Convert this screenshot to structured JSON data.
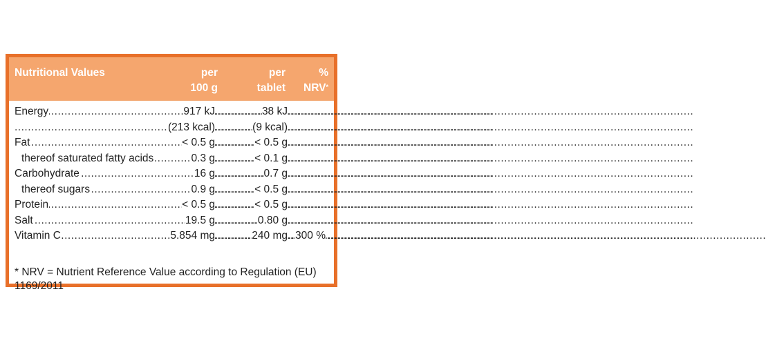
{
  "header": {
    "name": "Nutritional Values",
    "col1_line1": "per",
    "col1_line2": "100 g",
    "col2_line1": "per",
    "col2_line2": "tablet",
    "col3_line1": "%",
    "col3_line2": "NRV",
    "col3_mark": "*"
  },
  "rows": [
    {
      "label": "Energy",
      "per100g": "917 kJ",
      "tablet": "38 kJ",
      "nrv": ""
    },
    {
      "label": "",
      "per100g": "(213 kcal)",
      "tablet": "(9 kcal)",
      "nrv": ""
    },
    {
      "label": "Fat",
      "per100g": "< 0.5 g",
      "tablet": "< 0.5 g",
      "nrv": ""
    },
    {
      "label": "thereof saturated fatty acids",
      "per100g": "0.3 g",
      "tablet": "< 0.1 g",
      "nrv": ""
    },
    {
      "label": "Carbohydrate",
      "per100g": "16 g",
      "tablet": "0.7 g",
      "nrv": ""
    },
    {
      "label": "thereof sugars",
      "per100g": "0.9 g",
      "tablet": "< 0.5 g",
      "nrv": ""
    },
    {
      "label": "Protein",
      "per100g": "< 0.5 g",
      "tablet": "< 0.5 g",
      "nrv": ""
    },
    {
      "label": "Salt",
      "per100g": "19.5 g",
      "tablet": "0.80 g",
      "nrv": ""
    },
    {
      "label": "Vitamin C",
      "per100g": "5.854 mg",
      "tablet": "240 mg",
      "nrv": "300 %"
    }
  ],
  "footnote": "* NRV = Nutrient Reference Value according to Regulation (EU) 1169/2011"
}
